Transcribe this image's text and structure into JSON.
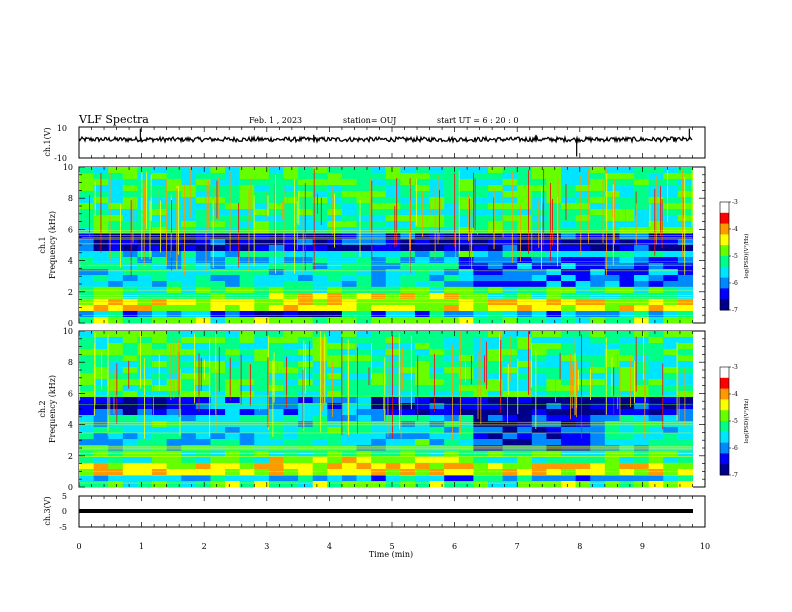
{
  "header": {
    "title": "VLF Spectra",
    "date": "Feb. 1 , 2023",
    "station": "station= OUJ",
    "start": "start  UT =  6 : 20 : 0"
  },
  "colors": {
    "spectrum_scale": [
      "#00008b",
      "#0000ff",
      "#0088ff",
      "#00e5ff",
      "#00ff88",
      "#66ff00",
      "#ffff00",
      "#ff9900",
      "#ff0000",
      "#ffffff"
    ]
  },
  "chart_data": [
    {
      "type": "line",
      "id": "ch1-waveform",
      "ylabel": "ch.1(V)",
      "ylim": [
        -10,
        10
      ],
      "yticks": [
        "10",
        "-10"
      ],
      "xlim": [
        0,
        10
      ],
      "mean_level": 2,
      "spikes": [
        {
          "x": 0.98,
          "y": 9
        },
        {
          "x": 3.75,
          "y": 5
        },
        {
          "x": 7.3,
          "y": 5
        },
        {
          "x": 7.95,
          "y": -9
        },
        {
          "x": 9.75,
          "y": 9
        }
      ]
    },
    {
      "type": "heatmap",
      "id": "ch1-spectrogram",
      "ylabel": "ch.1\nFrequency (kHz)",
      "ylim": [
        0,
        10
      ],
      "yticks": [
        "0",
        "2",
        "4",
        "6",
        "8",
        "10"
      ],
      "xlim": [
        0,
        9.8
      ],
      "colorbar": {
        "label": "log(PSD)(V²/Hz)",
        "range": [
          -7,
          -3
        ],
        "ticks": [
          "-3",
          "-4",
          "-5",
          "-6",
          "-7"
        ]
      },
      "dark_bands_khz": [
        [
          4.6,
          5.6
        ],
        [
          0.3,
          0.8
        ]
      ],
      "bright_bands_khz": [
        [
          0.9,
          1.4
        ],
        [
          6.0,
          10.0
        ]
      ]
    },
    {
      "type": "heatmap",
      "id": "ch2-spectrogram",
      "ylabel": "ch.2\nFrequency (kHz)",
      "ylim": [
        0,
        10
      ],
      "yticks": [
        "0",
        "2",
        "4",
        "6",
        "8",
        "10"
      ],
      "xlim": [
        0,
        9.8
      ],
      "colorbar": {
        "label": "log(PSD)(V²/Hz)",
        "range": [
          -7,
          -3
        ],
        "ticks": [
          "-3",
          "-4",
          "-5",
          "-6",
          "-7"
        ]
      },
      "dark_bands_khz": [
        [
          4.8,
          5.8
        ],
        [
          2.5,
          4.5
        ]
      ],
      "bright_bands_khz": [
        [
          0.9,
          1.4
        ],
        [
          6.0,
          10.0
        ]
      ]
    },
    {
      "type": "line",
      "id": "ch3-waveform",
      "ylabel": "ch.3(V)",
      "ylim": [
        -5,
        5
      ],
      "yticks": [
        "5",
        "0",
        "-5"
      ],
      "xlim": [
        0,
        10
      ],
      "mean_level": 0,
      "xlabel": "Time (min)",
      "xticks": [
        "0",
        "1",
        "2",
        "3",
        "4",
        "5",
        "6",
        "7",
        "8",
        "9",
        "10"
      ]
    }
  ]
}
